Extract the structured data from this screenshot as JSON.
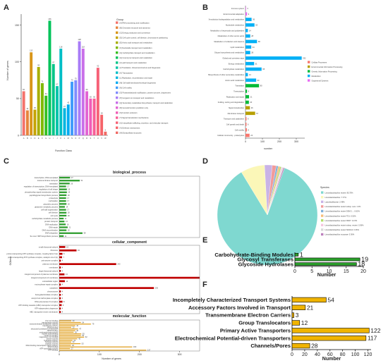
{
  "colors": {
    "A_palette": [
      "#f4726b",
      "#e6843b",
      "#d8961a",
      "#c5a300",
      "#a8ae00",
      "#7eb800",
      "#38bf22",
      "#00c35a",
      "#00c587",
      "#00c4a9",
      "#00bec6",
      "#00b6df",
      "#00abf1",
      "#409cfb",
      "#7f8cfd",
      "#a87cf7",
      "#c96fe9",
      "#e264d3",
      "#f05cb6",
      "#f75e96",
      "#f66177",
      "#f6646a",
      "#f06a65"
    ],
    "B_palette": {
      "Cellular Processes": "#f8766d",
      "Environmental Information Processing": "#b79f00",
      "Genetic Information Processing": "#00ba38",
      "Metabolism": "#00b0f6",
      "Organismal Systems": "#e76bf3"
    },
    "C_groups": [
      "#2f9e2f",
      "#c00000",
      "#e0a020"
    ],
    "D_palette": [
      "#7fd8d0",
      "#fbf7b8",
      "#c9b3e6",
      "#f29a9a",
      "#7fb0d9",
      "#f7bd7a",
      "#b3de69",
      "#f5c6df",
      "#d9d9d9",
      "#bc80bd"
    ],
    "E_bar": "#2ca02c",
    "F_bar": "#f0b400"
  },
  "panels": {
    "A": {
      "label": "A",
      "chart_data": {
        "type": "bar",
        "ylabel": "Number of genes",
        "xlabel": "Function Class",
        "ylim": [
          0,
          165
        ],
        "yticks": [
          0,
          50,
          100,
          150
        ],
        "categories": [
          "A",
          "B",
          "C",
          "D",
          "E",
          "F",
          "G",
          "H",
          "I",
          "J",
          "K",
          "L",
          "M",
          "N",
          "O",
          "P",
          "Q",
          "R",
          "S",
          "T",
          "U",
          "V",
          "W"
        ],
        "values": [
          60,
          34,
          113,
          35,
          93,
          71,
          54,
          156,
          97,
          67,
          118,
          37,
          42,
          73,
          75,
          128,
          118,
          60,
          50,
          50,
          92,
          28,
          5
        ],
        "labels": [
          "60",
          "34",
          "113",
          "35",
          "93",
          "71",
          "54",
          "156",
          "97",
          "67",
          "118",
          "37",
          "42",
          "73",
          "75",
          "128",
          "118",
          "60",
          "50",
          "50",
          "92",
          "28",
          "5"
        ],
        "legend_title": "Group",
        "legend": [
          "[A] RNA processing and modification",
          "[B] Chromatin structure and dynamics",
          "[C] Energy production and conversion",
          "[D] Cell cycle control, cell division, chromosome partitioning",
          "[E] Amino acid transport and metabolism",
          "[F] Nucleotide transport and metabolism",
          "[G] Carbohydrate transport and metabolism",
          "[H] Coenzyme transport and metabolism",
          "[I] Lipid transport and metabolism",
          "[J] Translation, ribosomal structure and biogenesis",
          "[K] Transcription",
          "[L] Replication, recombination and repair",
          "[M] Cell wall/membrane/envelope biogenesis",
          "[N] Cell motility",
          "[O] Posttranslational modification, protein turnover, chaperones",
          "[P] Inorganic ion transport and metabolism",
          "[Q] Secondary metabolites biosynthesis, transport and catabolism",
          "[R] General function prediction only",
          "[S] Function unknown",
          "[T] Signal transduction mechanisms",
          "[U] Intracellular trafficking, secretion, and vesicular transport",
          "[V] Defense mechanisms",
          "[W] Extracellular structures"
        ]
      }
    },
    "B": {
      "label": "B",
      "chart_data": {
        "type": "bar",
        "orientation": "horizontal",
        "xlabel": "number",
        "xlim": [
          0,
          350
        ],
        "xticks": [
          0,
          100,
          200,
          300
        ],
        "categories": [
          "Cellular community - prokaryotes",
          "Cell motility",
          "Cell growth and death",
          "Transport and catabolism",
          "Membrane transport",
          "Signal transduction",
          "Folding, sorting and degradation",
          "Replication and repair",
          "Transcription",
          "Translation",
          "Amino acid metabolism",
          "Biosynthesis of other secondary metabolites",
          "Carbohydrate metabolism",
          "Energy metabolism",
          "Global and overview maps",
          "Glycan biosynthesis and metabolism",
          "Lipid metabolism",
          "Metabolism of cofactors and vitamins",
          "Metabolism of other amino acids",
          "Metabolism of terpenoids and polyketides",
          "Nucleotide metabolism",
          "Xenobiotics biodegradation and metabolism",
          "Environmental adaptation",
          "Immune system"
        ],
        "values": [
          24,
          8,
          6,
          6,
          57,
          26,
          20,
          21,
          9,
          80,
          63,
          14,
          95,
          51,
          332,
          28,
          34,
          68,
          28,
          14,
          53,
          36,
          9,
          3
        ],
        "groups": [
          "Cellular Processes",
          "Cellular Processes",
          "Cellular Processes",
          "Cellular Processes",
          "Environmental Information Processing",
          "Environmental Information Processing",
          "Genetic Information Processing",
          "Genetic Information Processing",
          "Genetic Information Processing",
          "Genetic Information Processing",
          "Metabolism",
          "Metabolism",
          "Metabolism",
          "Metabolism",
          "Metabolism",
          "Metabolism",
          "Metabolism",
          "Metabolism",
          "Metabolism",
          "Metabolism",
          "Metabolism",
          "Metabolism",
          "Organismal Systems",
          "Organismal Systems"
        ],
        "labels": [
          "24",
          "8",
          "6",
          "6",
          "57",
          "26",
          "20",
          "21",
          "9",
          "80",
          "63",
          "14",
          "95",
          "51",
          "332",
          "28",
          "34",
          "68",
          "28",
          "14",
          "53",
          "36",
          "9",
          "3"
        ],
        "legend": [
          "Cellular Processes",
          "Environmental Information Processing",
          "Genetic Information Processing",
          "Metabolism",
          "Organismal Systems"
        ]
      }
    },
    "C": {
      "label": "C",
      "chart_data": {
        "type": "bar",
        "orientation": "horizontal",
        "ylabel": "GOterm",
        "xlabel": "Number of genes",
        "xlim": [
          0,
          350
        ],
        "xticks": [
          0,
          100,
          200,
          300
        ],
        "groups": [
          {
            "name": "biological_process",
            "categories": [
              "transcription, DNA-templated",
              "transmembrane transport",
              "translation",
              "regulation of transcription, DNA-templated",
              "regulation of cell shape",
              "phosphorelay signal transduction system",
              "peptidoglycan biosynthetic process",
              "proteolysis",
              "methylation",
              "glycolytic process",
              "glutamine metabolic process",
              "cell wall organization",
              "cell division",
              "cell cycle",
              "carbohydrate metabolic process",
              "protein transport",
              "DNA replication",
              "DNA repair",
              "DNA recombination",
              "DNA integration",
              "'de novo' IMP biosynthetic process"
            ],
            "values": [
              27,
              51,
              26,
              17,
              19,
              19,
              18,
              17,
              17,
              18,
              14,
              17,
              18,
              18,
              11,
              13,
              16,
              21,
              18,
              58,
              11
            ]
          },
          {
            "name": "cellular_component",
            "categories": [
              "small ribosomal subunit",
              "ribosome",
              "proton-transporting ATP synthase complex, coupling factor F(o)",
              "proton-transporting ATP synthase complex, catalytic core F(1)",
              "primosome complex",
              "plasma membrane",
              "membrane",
              "large ribosomal subunit",
              "integral component of plasma membrane",
              "integral component of membrane",
              "extracellular region",
              "excinuclease repair complex",
              "cytoplasm",
              "chromosome",
              "beta-galactosidase complex",
              "acetyl-CoA carboxylase complex",
              "DNA polymerase III complex",
              "ATP-binding cassette (ABC) transporter complex",
              "ATP-independent chaperone",
              "ABC transporter (inner membrane)"
            ],
            "values": [
              15,
              43,
              8,
              7,
              4,
              142,
              4,
              4,
              13,
              373,
              14,
              4,
              236,
              4,
              4,
              4,
              8,
              6,
              4,
              4
            ],
            "labels": [
              "15",
              "43",
              "8",
              "7",
              "4",
              "142",
              "4",
              "4",
              "13",
              "373",
              "14",
              "4",
              "236",
              "4",
              "4",
              "4",
              "8",
              "6",
              "4",
              "4"
            ]
          },
          {
            "name": "molecular_function",
            "categories": [
              "zinc ion binding",
              "transposase activity",
              "transmembrane transporter activity",
              "transferase activity",
              "tRNA binding",
              "structural constituent of ribosome",
              "rRNA binding",
              "oxidoreductase activity",
              "nucleic acid binding",
              "metal ion binding",
              "magnesium ion binding",
              "kinase activity",
              "hydrolase activity",
              "helicase activity",
              "catalytic activity",
              "DNA-binding transcription factor activity",
              "DNA binding",
              "ATP hydrolysis activity",
              "ATP binding"
            ],
            "values": [
              30,
              54,
              79,
              40,
              30,
              47,
              40,
              36,
              55,
              54,
              62,
              45,
              33,
              30,
              53,
              29,
              182,
              27,
              217
            ],
            "labels": [
              "30",
              "54",
              "79",
              "40",
              "30",
              "47",
              "40",
              "36",
              "55",
              "54",
              "62",
              "45",
              "33",
              "30",
              "53",
              "29",
              "182",
              "27",
              "217"
            ]
          }
        ]
      }
    },
    "D": {
      "label": "D",
      "chart_data": {
        "type": "pie",
        "legend_title": "Species",
        "slices": [
          {
            "name": "Limosilactobacillus reuteri",
            "value": 85.75
          },
          {
            "name": "Limosilactobacillus",
            "value": 7.77
          },
          {
            "name": "Lactobacillaceae",
            "value": 2.48
          },
          {
            "name": "Limosilactobacillus reuteri subsp. suis",
            "value": 1.3
          },
          {
            "name": "Limosilactobacillus reuteri DSM 20016",
            "value": 0.62
          },
          {
            "name": "Limosilactobacillus reuteri TD1",
            "value": 0.52
          },
          {
            "name": "Limosilactobacillus reuteri I5007",
            "value": 0.47
          },
          {
            "name": "Limosilactobacillus reuteri subsp. reuteri",
            "value": 0.36
          },
          {
            "name": "Limosilactobacillus reuteri SD2112",
            "value": 0.36
          },
          {
            "name": "Limosilactobacillus mucosae",
            "value": 0.36
          }
        ],
        "legend": [
          "Limosilactobacillus reuteri: 85.75%",
          "Limosilactobacillus: 7.77%",
          "Lactobacillaceae: 2.48%",
          "Limosilactobacillus reuteri subsp. suis: 1.3%",
          "Limosilactobacillus reuteri DSM 2...: 0.62%",
          "Limosilactobacillus reuteri TD1: 0.52%",
          "Limosilactobacillus reuteri I5007: 0.47%",
          "Limosilactobacillus reuteri subsp. reuteri: 0.36%",
          "Limosilactobacillus reuteri SD2112: 0.36%",
          "Limosilactobacillus mucosae: 0.36%"
        ]
      }
    },
    "E": {
      "label": "E",
      "chart_data": {
        "type": "bar",
        "orientation": "horizontal",
        "xlabel": "Number",
        "xlim": [
          0,
          20
        ],
        "xticks": [
          0,
          5,
          10,
          15,
          20
        ],
        "categories": [
          "Carbohydrate-Binding Modules",
          "Glycosyl Transferases",
          "Glycoside Hydrolases"
        ],
        "values": [
          1,
          19,
          18
        ],
        "labels": [
          "1",
          "19",
          "18"
        ]
      }
    },
    "F": {
      "label": "F",
      "chart_data": {
        "type": "bar",
        "orientation": "horizontal",
        "xlabel": "Number",
        "xlim": [
          0,
          125
        ],
        "xticks": [
          0,
          20,
          40,
          60,
          80,
          100,
          120
        ],
        "categories": [
          "Incompletely Characterized Transport Systems",
          "Accessory Factors Involved in Transport",
          "Transmembrane Electron Carriers",
          "Group Translocators",
          "Primary Active Transporters",
          "Electrochemical Potential-driven Transporters",
          "Channels/Pores"
        ],
        "values": [
          54,
          21,
          3,
          12,
          122,
          117,
          28
        ],
        "labels": [
          "54",
          "21",
          "3",
          "12",
          "122",
          "117",
          "28"
        ]
      }
    }
  }
}
